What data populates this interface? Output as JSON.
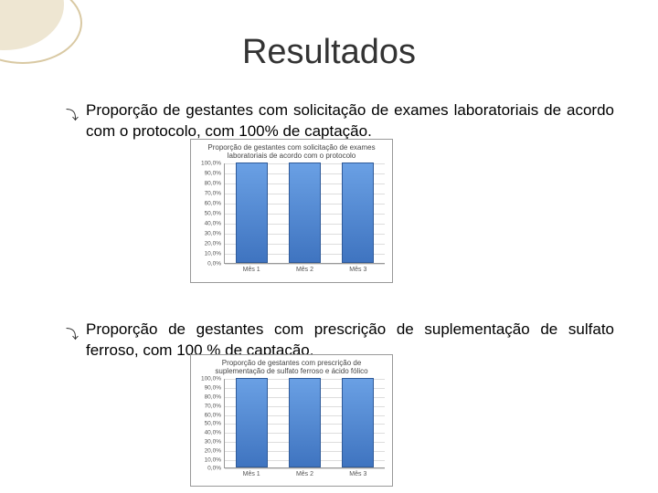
{
  "title": "Resultados",
  "bullets": [
    "Proporção de gestantes com solicitação de exames laboratoriais de acordo com o protocolo, com 100% de captação.",
    "Proporção de gestantes com prescrição de suplementação de sulfato ferroso, com 100                              % de captação."
  ],
  "chart1": {
    "title": "Proporção de gestantes com solicitação de exames laboratoriais de acordo com o protocolo",
    "categories": [
      "Mês 1",
      "Mês 2",
      "Mês 3"
    ],
    "values": [
      100,
      100,
      100
    ],
    "ylim": [
      0,
      100
    ],
    "ytick_step": 10,
    "y_suffix": ",0%",
    "bar_color_top": "#6aa0e4",
    "bar_color_bottom": "#3f74c0",
    "grid_color": "#dddddd",
    "title_fontsize": 8,
    "tick_fontsize": 7
  },
  "chart2": {
    "title": "Proporção de gestantes com prescrição de suplementação de sulfato ferroso e ácido fólico",
    "categories": [
      "Mês 1",
      "Mês 2",
      "Mês 3"
    ],
    "values": [
      100,
      100,
      100
    ],
    "ylim": [
      0,
      100
    ],
    "ytick_step": 10,
    "y_suffix": ",0%",
    "bar_color_top": "#6aa0e4",
    "bar_color_bottom": "#3f74c0",
    "grid_color": "#dddddd",
    "title_fontsize": 8,
    "tick_fontsize": 7
  }
}
